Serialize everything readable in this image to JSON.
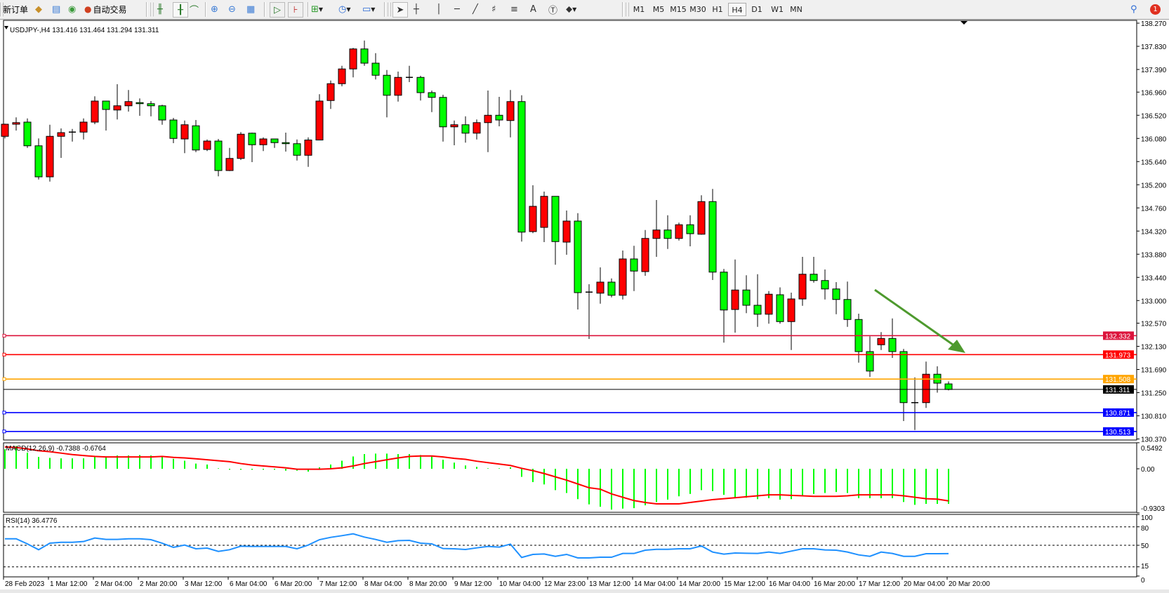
{
  "toolbar": {
    "new_order_label": "新订单",
    "auto_trading_label": "自动交易",
    "timeframes": [
      "M1",
      "M5",
      "M15",
      "M30",
      "H1",
      "H4",
      "D1",
      "W1",
      "MN"
    ],
    "active_timeframe": "H4",
    "notification_count": "1",
    "icons": [
      "new-order-icon",
      "market-watch-icon",
      "data-window-icon",
      "signals-icon",
      "auto-trading-icon",
      "bar-chart-icon",
      "candlestick-icon",
      "line-chart-icon",
      "zoom-in-icon",
      "zoom-out-icon",
      "tile-windows-icon",
      "auto-scroll-icon",
      "chart-shift-icon",
      "indicators-icon",
      "periods-icon",
      "templates-icon",
      "cursor-icon",
      "crosshair-icon",
      "vertical-line-icon",
      "horizontal-line-icon",
      "trendline-icon",
      "fibonacci-icon",
      "channel-icon",
      "text-icon",
      "text-label-icon",
      "arrows-icon",
      "search-icon",
      "notification-icon"
    ]
  },
  "chart": {
    "header": "USDJPY-,H4  131.416 131.464 131.294 131.311",
    "colors": {
      "bull": "#ff0000",
      "bear": "#00ff00",
      "outline": "#000000",
      "macd_hist": "#00ff00",
      "macd_signal": "#ff0000",
      "rsi": "#1e90ff"
    },
    "price_axis": [
      "138.270",
      "137.830",
      "137.390",
      "136.960",
      "136.520",
      "136.080",
      "135.640",
      "135.200",
      "134.760",
      "134.320",
      "133.880",
      "133.440",
      "133.000",
      "132.570",
      "132.130",
      "131.690",
      "131.250",
      "130.810",
      "130.370"
    ],
    "time_axis": [
      "28 Feb 2023",
      "1 Mar 12:00",
      "2 Mar 04:00",
      "2 Mar 20:00",
      "3 Mar 12:00",
      "6 Mar 04:00",
      "6 Mar 20:00",
      "7 Mar 12:00",
      "8 Mar 04:00",
      "8 Mar 20:00",
      "9 Mar 12:00",
      "10 Mar 04:00",
      "12 Mar 23:00",
      "13 Mar 12:00",
      "14 Mar 04:00",
      "14 Mar 20:00",
      "15 Mar 12:00",
      "16 Mar 04:00",
      "16 Mar 20:00",
      "17 Mar 12:00",
      "20 Mar 04:00",
      "20 Mar 20:00"
    ],
    "horizontal_lines": [
      {
        "price": 132.332,
        "label": "132.332",
        "color": "#dc143c"
      },
      {
        "price": 131.973,
        "label": "131.973",
        "color": "#ff0000"
      },
      {
        "price": 131.508,
        "label": "131.508",
        "color": "#ffa500"
      },
      {
        "price": 131.311,
        "label": "131.311",
        "color": "#000000"
      },
      {
        "price": 130.871,
        "label": "130.871",
        "color": "#0000ff"
      },
      {
        "price": 130.513,
        "label": "130.513",
        "color": "#0000ff"
      }
    ],
    "trend_arrow_color": "#4e9a2e",
    "candles": [
      {
        "o": 136.12,
        "h": 136.36,
        "l": 136.08,
        "c": 136.35
      },
      {
        "o": 136.35,
        "h": 136.48,
        "l": 136.23,
        "c": 136.38
      },
      {
        "o": 136.39,
        "h": 136.46,
        "l": 135.9,
        "c": 135.94
      },
      {
        "o": 135.94,
        "h": 136.08,
        "l": 135.3,
        "c": 135.35
      },
      {
        "o": 135.35,
        "h": 136.34,
        "l": 135.26,
        "c": 136.12
      },
      {
        "o": 136.12,
        "h": 136.27,
        "l": 135.71,
        "c": 136.19
      },
      {
        "o": 136.19,
        "h": 136.26,
        "l": 136.02,
        "c": 136.2
      },
      {
        "o": 136.2,
        "h": 136.46,
        "l": 136.06,
        "c": 136.39
      },
      {
        "o": 136.39,
        "h": 136.88,
        "l": 136.35,
        "c": 136.79
      },
      {
        "o": 136.79,
        "h": 136.79,
        "l": 136.23,
        "c": 136.63
      },
      {
        "o": 136.62,
        "h": 137.11,
        "l": 136.44,
        "c": 136.7
      },
      {
        "o": 136.7,
        "h": 137.0,
        "l": 136.59,
        "c": 136.78
      },
      {
        "o": 136.76,
        "h": 136.84,
        "l": 136.51,
        "c": 136.74
      },
      {
        "o": 136.74,
        "h": 136.79,
        "l": 136.5,
        "c": 136.7
      },
      {
        "o": 136.7,
        "h": 136.72,
        "l": 136.34,
        "c": 136.43
      },
      {
        "o": 136.43,
        "h": 136.47,
        "l": 135.99,
        "c": 136.08
      },
      {
        "o": 136.07,
        "h": 136.42,
        "l": 135.8,
        "c": 136.34
      },
      {
        "o": 136.32,
        "h": 136.43,
        "l": 135.82,
        "c": 135.86
      },
      {
        "o": 135.87,
        "h": 136.06,
        "l": 135.84,
        "c": 136.03
      },
      {
        "o": 136.03,
        "h": 136.07,
        "l": 135.36,
        "c": 135.47
      },
      {
        "o": 135.47,
        "h": 135.9,
        "l": 135.46,
        "c": 135.7
      },
      {
        "o": 135.7,
        "h": 136.2,
        "l": 135.67,
        "c": 136.16
      },
      {
        "o": 136.18,
        "h": 136.19,
        "l": 135.63,
        "c": 135.96
      },
      {
        "o": 135.96,
        "h": 136.1,
        "l": 135.84,
        "c": 136.07
      },
      {
        "o": 136.07,
        "h": 136.07,
        "l": 135.9,
        "c": 136.0
      },
      {
        "o": 136.0,
        "h": 136.19,
        "l": 135.83,
        "c": 135.98
      },
      {
        "o": 135.98,
        "h": 136.06,
        "l": 135.66,
        "c": 135.76
      },
      {
        "o": 135.76,
        "h": 136.1,
        "l": 135.54,
        "c": 136.05
      },
      {
        "o": 136.05,
        "h": 136.92,
        "l": 136.05,
        "c": 136.79
      },
      {
        "o": 136.8,
        "h": 137.18,
        "l": 136.64,
        "c": 137.12
      },
      {
        "o": 137.12,
        "h": 137.46,
        "l": 137.07,
        "c": 137.4
      },
      {
        "o": 137.4,
        "h": 137.8,
        "l": 137.24,
        "c": 137.78
      },
      {
        "o": 137.78,
        "h": 137.94,
        "l": 137.46,
        "c": 137.51
      },
      {
        "o": 137.51,
        "h": 137.7,
        "l": 137.2,
        "c": 137.28
      },
      {
        "o": 137.28,
        "h": 137.38,
        "l": 136.48,
        "c": 136.9
      },
      {
        "o": 136.9,
        "h": 137.35,
        "l": 136.78,
        "c": 137.24
      },
      {
        "o": 137.24,
        "h": 137.46,
        "l": 137.15,
        "c": 137.24
      },
      {
        "o": 137.24,
        "h": 137.27,
        "l": 136.8,
        "c": 136.95
      },
      {
        "o": 136.95,
        "h": 136.99,
        "l": 136.58,
        "c": 136.86
      },
      {
        "o": 136.86,
        "h": 136.91,
        "l": 136.02,
        "c": 136.3
      },
      {
        "o": 136.3,
        "h": 136.42,
        "l": 135.95,
        "c": 136.34
      },
      {
        "o": 136.34,
        "h": 136.5,
        "l": 136.0,
        "c": 136.18
      },
      {
        "o": 136.18,
        "h": 136.44,
        "l": 136.06,
        "c": 136.38
      },
      {
        "o": 136.38,
        "h": 136.99,
        "l": 135.82,
        "c": 136.52
      },
      {
        "o": 136.52,
        "h": 136.87,
        "l": 136.31,
        "c": 136.43
      },
      {
        "o": 136.42,
        "h": 137.0,
        "l": 136.1,
        "c": 136.78
      },
      {
        "o": 136.78,
        "h": 136.9,
        "l": 134.12,
        "c": 134.3
      },
      {
        "o": 134.31,
        "h": 135.19,
        "l": 134.28,
        "c": 134.79
      },
      {
        "o": 134.39,
        "h": 135.07,
        "l": 134.11,
        "c": 134.98
      },
      {
        "o": 134.98,
        "h": 134.98,
        "l": 133.68,
        "c": 134.12
      },
      {
        "o": 134.11,
        "h": 134.71,
        "l": 133.87,
        "c": 134.51
      },
      {
        "o": 134.51,
        "h": 134.66,
        "l": 132.83,
        "c": 133.15
      },
      {
        "o": 133.15,
        "h": 133.31,
        "l": 132.27,
        "c": 133.16
      },
      {
        "o": 133.14,
        "h": 133.63,
        "l": 132.94,
        "c": 133.35
      },
      {
        "o": 133.35,
        "h": 133.42,
        "l": 133.06,
        "c": 133.1
      },
      {
        "o": 133.1,
        "h": 133.95,
        "l": 133.02,
        "c": 133.79
      },
      {
        "o": 133.79,
        "h": 134.04,
        "l": 133.18,
        "c": 133.56
      },
      {
        "o": 133.55,
        "h": 134.34,
        "l": 133.47,
        "c": 134.18
      },
      {
        "o": 134.18,
        "h": 134.91,
        "l": 133.83,
        "c": 134.34
      },
      {
        "o": 134.34,
        "h": 134.62,
        "l": 133.98,
        "c": 134.18
      },
      {
        "o": 134.18,
        "h": 134.48,
        "l": 134.14,
        "c": 134.44
      },
      {
        "o": 134.44,
        "h": 134.62,
        "l": 134.03,
        "c": 134.27
      },
      {
        "o": 134.26,
        "h": 135.0,
        "l": 134.25,
        "c": 134.88
      },
      {
        "o": 134.88,
        "h": 135.12,
        "l": 133.39,
        "c": 133.54
      },
      {
        "o": 133.54,
        "h": 133.6,
        "l": 132.2,
        "c": 132.82
      },
      {
        "o": 132.83,
        "h": 133.78,
        "l": 132.39,
        "c": 133.2
      },
      {
        "o": 133.2,
        "h": 133.48,
        "l": 132.76,
        "c": 132.91
      },
      {
        "o": 132.91,
        "h": 133.5,
        "l": 132.5,
        "c": 132.74
      },
      {
        "o": 132.74,
        "h": 133.18,
        "l": 132.56,
        "c": 133.12
      },
      {
        "o": 133.11,
        "h": 133.25,
        "l": 132.56,
        "c": 132.6
      },
      {
        "o": 132.6,
        "h": 133.15,
        "l": 132.06,
        "c": 133.03
      },
      {
        "o": 133.03,
        "h": 133.83,
        "l": 132.9,
        "c": 133.5
      },
      {
        "o": 133.5,
        "h": 133.83,
        "l": 133.34,
        "c": 133.38
      },
      {
        "o": 133.38,
        "h": 133.59,
        "l": 133.02,
        "c": 133.22
      },
      {
        "o": 133.22,
        "h": 133.35,
        "l": 132.74,
        "c": 133.02
      },
      {
        "o": 133.02,
        "h": 133.36,
        "l": 132.5,
        "c": 132.64
      },
      {
        "o": 132.64,
        "h": 132.75,
        "l": 131.82,
        "c": 132.03
      },
      {
        "o": 132.03,
        "h": 132.32,
        "l": 131.55,
        "c": 131.66
      },
      {
        "o": 132.16,
        "h": 132.4,
        "l": 132.06,
        "c": 132.28
      },
      {
        "o": 132.28,
        "h": 132.66,
        "l": 131.91,
        "c": 132.03
      },
      {
        "o": 132.03,
        "h": 132.08,
        "l": 130.71,
        "c": 131.06
      },
      {
        "o": 131.06,
        "h": 131.54,
        "l": 130.54,
        "c": 131.06
      },
      {
        "o": 131.06,
        "h": 131.84,
        "l": 130.96,
        "c": 131.6
      },
      {
        "o": 131.6,
        "h": 131.75,
        "l": 131.25,
        "c": 131.43
      },
      {
        "o": 131.416,
        "h": 131.464,
        "l": 131.294,
        "c": 131.311
      }
    ]
  },
  "macd": {
    "label": "MACD(12,26,9) -0.7388 -0.6764",
    "axis": [
      "0.5492",
      "0.00",
      "-0.9303"
    ],
    "histogram": [
      0.41,
      0.48,
      0.34,
      0.25,
      0.23,
      0.22,
      0.22,
      0.22,
      0.25,
      0.26,
      0.28,
      0.28,
      0.29,
      0.28,
      0.26,
      0.21,
      0.17,
      0.11,
      0.09,
      0.01,
      -0.02,
      -0.02,
      -0.02,
      -0.02,
      -0.02,
      -0.04,
      -0.04,
      -0.06,
      0.03,
      0.09,
      0.17,
      0.26,
      0.31,
      0.32,
      0.32,
      0.31,
      0.31,
      0.29,
      0.26,
      0.19,
      0.13,
      0.07,
      0.04,
      0.01,
      0.01,
      0.03,
      -0.17,
      -0.28,
      -0.33,
      -0.45,
      -0.51,
      -0.64,
      -0.75,
      -0.8,
      -0.86,
      -0.84,
      -0.83,
      -0.77,
      -0.7,
      -0.65,
      -0.58,
      -0.53,
      -0.45,
      -0.47,
      -0.55,
      -0.6,
      -0.61,
      -0.64,
      -0.62,
      -0.65,
      -0.64,
      -0.56,
      -0.53,
      -0.51,
      -0.49,
      -0.51,
      -0.62,
      -0.62,
      -0.62,
      -0.62,
      -0.7,
      -0.76,
      -0.74,
      -0.74,
      -0.7388
    ],
    "signal": [
      0.46,
      0.45,
      0.42,
      0.38,
      0.36,
      0.33,
      0.3,
      0.28,
      0.26,
      0.25,
      0.25,
      0.25,
      0.25,
      0.25,
      0.26,
      0.24,
      0.23,
      0.21,
      0.19,
      0.17,
      0.15,
      0.11,
      0.08,
      0.06,
      0.04,
      0.02,
      -0.01,
      -0.01,
      -0.01,
      0.0,
      0.02,
      0.06,
      0.11,
      0.15,
      0.19,
      0.23,
      0.26,
      0.27,
      0.27,
      0.25,
      0.22,
      0.2,
      0.16,
      0.13,
      0.1,
      0.07,
      0.01,
      -0.04,
      -0.1,
      -0.17,
      -0.24,
      -0.32,
      -0.4,
      -0.43,
      -0.53,
      -0.6,
      -0.67,
      -0.71,
      -0.74,
      -0.74,
      -0.74,
      -0.71,
      -0.68,
      -0.65,
      -0.63,
      -0.61,
      -0.59,
      -0.57,
      -0.55,
      -0.55,
      -0.56,
      -0.57,
      -0.58,
      -0.58,
      -0.58,
      -0.57,
      -0.55,
      -0.55,
      -0.55,
      -0.55,
      -0.57,
      -0.6,
      -0.63,
      -0.64,
      -0.6764
    ]
  },
  "rsi": {
    "label": "RSI(14) 36.4776",
    "axis": [
      "100",
      "80",
      "50",
      "15",
      "0"
    ],
    "levels": [
      80,
      50,
      15
    ],
    "values": [
      60.6,
      60.6,
      52.3,
      42.8,
      53.4,
      54.9,
      54.9,
      56.1,
      61.8,
      59.5,
      59.5,
      60.6,
      60.6,
      59.1,
      53.4,
      46.6,
      50.4,
      44.3,
      45.4,
      40.1,
      42.8,
      48.5,
      48.1,
      48.1,
      48.1,
      48.1,
      44.3,
      50.4,
      59.1,
      62.9,
      65.6,
      68.6,
      63.3,
      59.5,
      54.9,
      57.6,
      58.0,
      53.4,
      52.3,
      44.7,
      44.3,
      43.2,
      45.8,
      48.1,
      47.0,
      51.9,
      30.2,
      35.2,
      35.9,
      32.1,
      35.2,
      29.5,
      29.5,
      30.6,
      30.6,
      36.7,
      36.7,
      42.0,
      43.5,
      43.5,
      44.3,
      44.3,
      48.9,
      39.0,
      35.6,
      37.5,
      37.1,
      36.7,
      39.0,
      36.7,
      40.5,
      44.3,
      44.3,
      42.4,
      42.0,
      39.0,
      34.4,
      32.1,
      39.0,
      36.7,
      32.1,
      32.1,
      36.3,
      36.3,
      36.48
    ]
  }
}
